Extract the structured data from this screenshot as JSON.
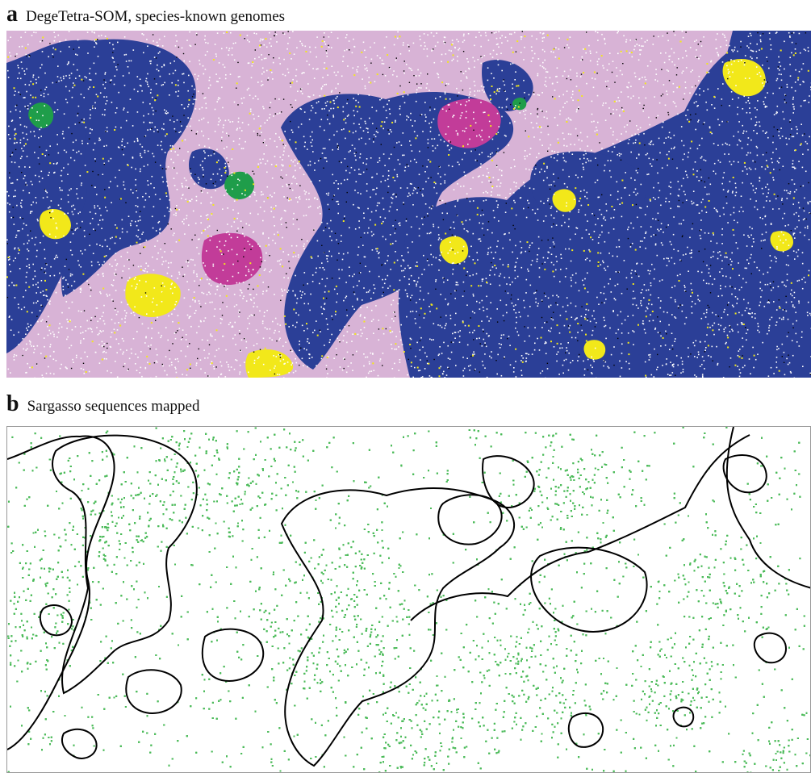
{
  "panel_a": {
    "letter": "a",
    "caption": "DegeTetra-SOM, species-known genomes",
    "colors": {
      "background_region": "#d8b3d6",
      "major_cluster": "#2b3f97",
      "yellow_cluster": "#f2e81a",
      "magenta_cluster": "#c23c99",
      "green_cluster": "#1f9d4a",
      "speckle_white": "#ffffff",
      "speckle_black": "#000000"
    }
  },
  "panel_b": {
    "letter": "b",
    "caption": "Sargasso sequences mapped",
    "colors": {
      "dots": "#4cbb5a",
      "contour": "#000000",
      "background": "#ffffff"
    }
  }
}
